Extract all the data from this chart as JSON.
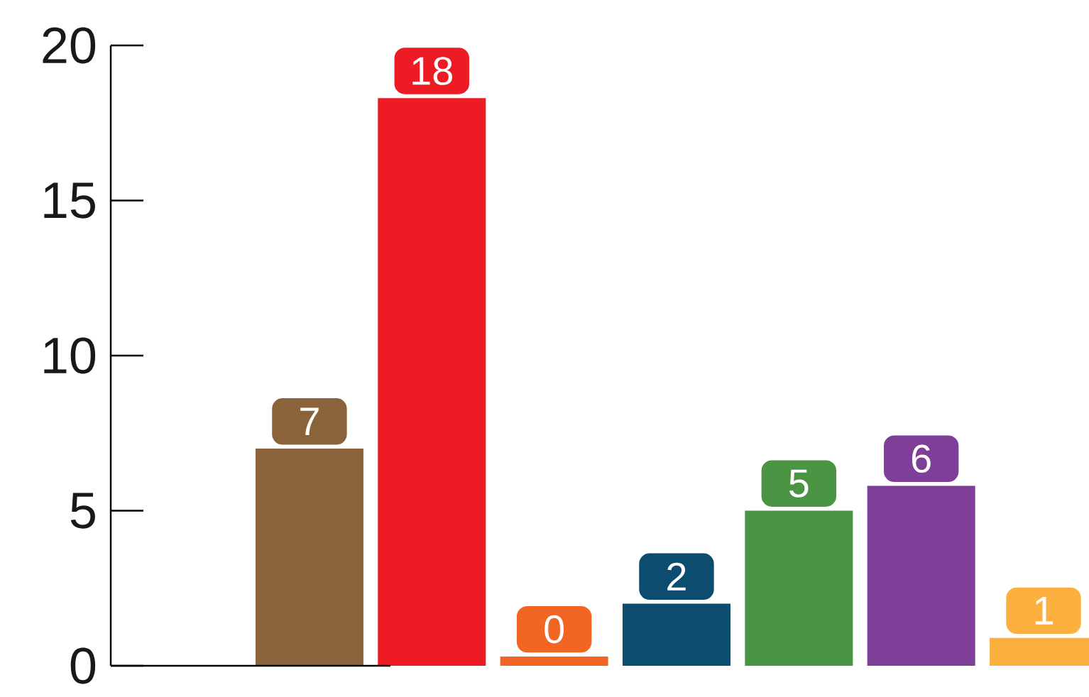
{
  "chart_data": {
    "type": "bar",
    "categories": [
      null,
      null,
      null,
      null,
      null,
      null,
      null
    ],
    "values": [
      7.0,
      18.3,
      0.3,
      2.0,
      5.0,
      5.8,
      0.9
    ],
    "value_labels": [
      "7",
      "18",
      "0",
      "2",
      "5",
      "6",
      "1"
    ],
    "colors": [
      "#8a633a",
      "#ed1c24",
      "#f26522",
      "#0b4c6f",
      "#4a9444",
      "#7f3f98",
      "#fbb040"
    ],
    "ylim": [
      0,
      20
    ],
    "yticks": [
      0,
      5,
      10,
      15,
      20
    ]
  }
}
